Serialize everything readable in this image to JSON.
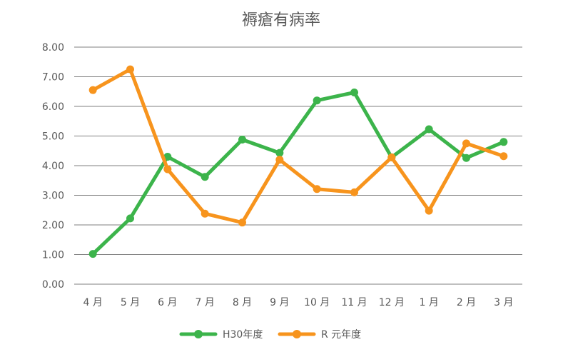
{
  "chart_data": {
    "type": "line",
    "title": "褥瘡有病率",
    "xlabel": "",
    "ylabel": "",
    "categories": [
      "4 月",
      "5 月",
      "6 月",
      "7 月",
      "8 月",
      "9 月",
      "10 月",
      "11 月",
      "12 月",
      "1 月",
      "2 月",
      "3 月"
    ],
    "y_ticks": [
      "0.00",
      "1.00",
      "2.00",
      "3.00",
      "4.00",
      "5.00",
      "6.00",
      "7.00",
      "8.00"
    ],
    "ylim": [
      0,
      8
    ],
    "grid": true,
    "legend_position": "bottom",
    "series": [
      {
        "name": "H30年度",
        "color": "#3cb44b",
        "values": [
          1.02,
          2.22,
          4.3,
          3.62,
          4.88,
          4.43,
          6.2,
          6.47,
          4.28,
          5.23,
          4.26,
          4.8
        ]
      },
      {
        "name": "R 元年度",
        "color": "#f7941d",
        "values": [
          6.55,
          7.25,
          3.88,
          2.38,
          2.08,
          4.2,
          3.21,
          3.1,
          4.28,
          2.48,
          4.75,
          4.32
        ]
      }
    ]
  }
}
